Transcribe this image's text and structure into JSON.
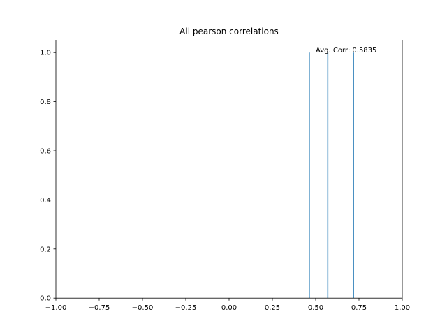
{
  "chart_data": {
    "type": "bar",
    "title": "All pearson correlations",
    "xlabel": "",
    "ylabel": "",
    "xlim": [
      -1.0,
      1.0
    ],
    "ylim": [
      0.0,
      1.05
    ],
    "xticks": [
      -1.0,
      -0.75,
      -0.5,
      -0.25,
      0.0,
      0.25,
      0.5,
      0.75,
      1.0
    ],
    "xtick_labels": [
      "−1.00",
      "−0.75",
      "−0.50",
      "−0.25",
      "0.00",
      "0.25",
      "0.50",
      "0.75",
      "1.00"
    ],
    "yticks": [
      0.0,
      0.2,
      0.4,
      0.6,
      0.8,
      1.0
    ],
    "ytick_labels": [
      "0.0",
      "0.2",
      "0.4",
      "0.6",
      "0.8",
      "1.0"
    ],
    "bins": [
      {
        "x": 0.463,
        "count": 1
      },
      {
        "x": 0.57,
        "count": 1
      },
      {
        "x": 0.718,
        "count": 1
      }
    ],
    "annotation": {
      "text": "Avg. Corr: 0.5835"
    },
    "bar_color": "#1f77b4",
    "grid": false
  }
}
